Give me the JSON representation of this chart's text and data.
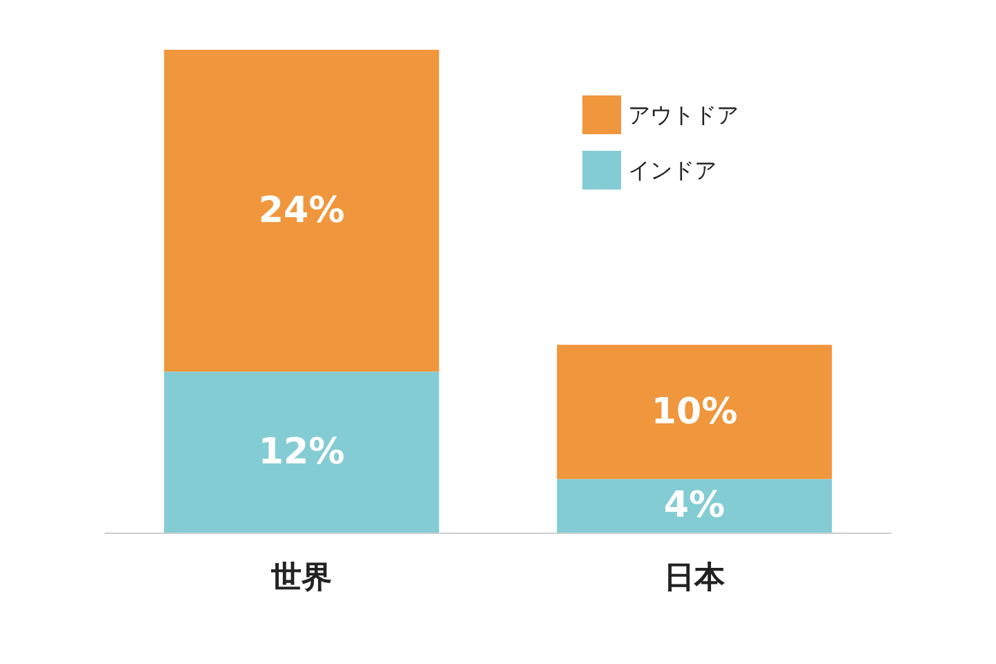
{
  "chart_data": {
    "type": "bar",
    "stacked": true,
    "categories": [
      "世界",
      "日本"
    ],
    "series": [
      {
        "name": "インドア",
        "color": "#84ccd4",
        "values": [
          12,
          4
        ],
        "value_labels": [
          "12%",
          "4%"
        ]
      },
      {
        "name": "アウトドア",
        "color": "#f0963c",
        "values": [
          24,
          10
        ],
        "value_labels": [
          "24%",
          "10%"
        ]
      }
    ],
    "legend": "top right",
    "grid": false
  }
}
